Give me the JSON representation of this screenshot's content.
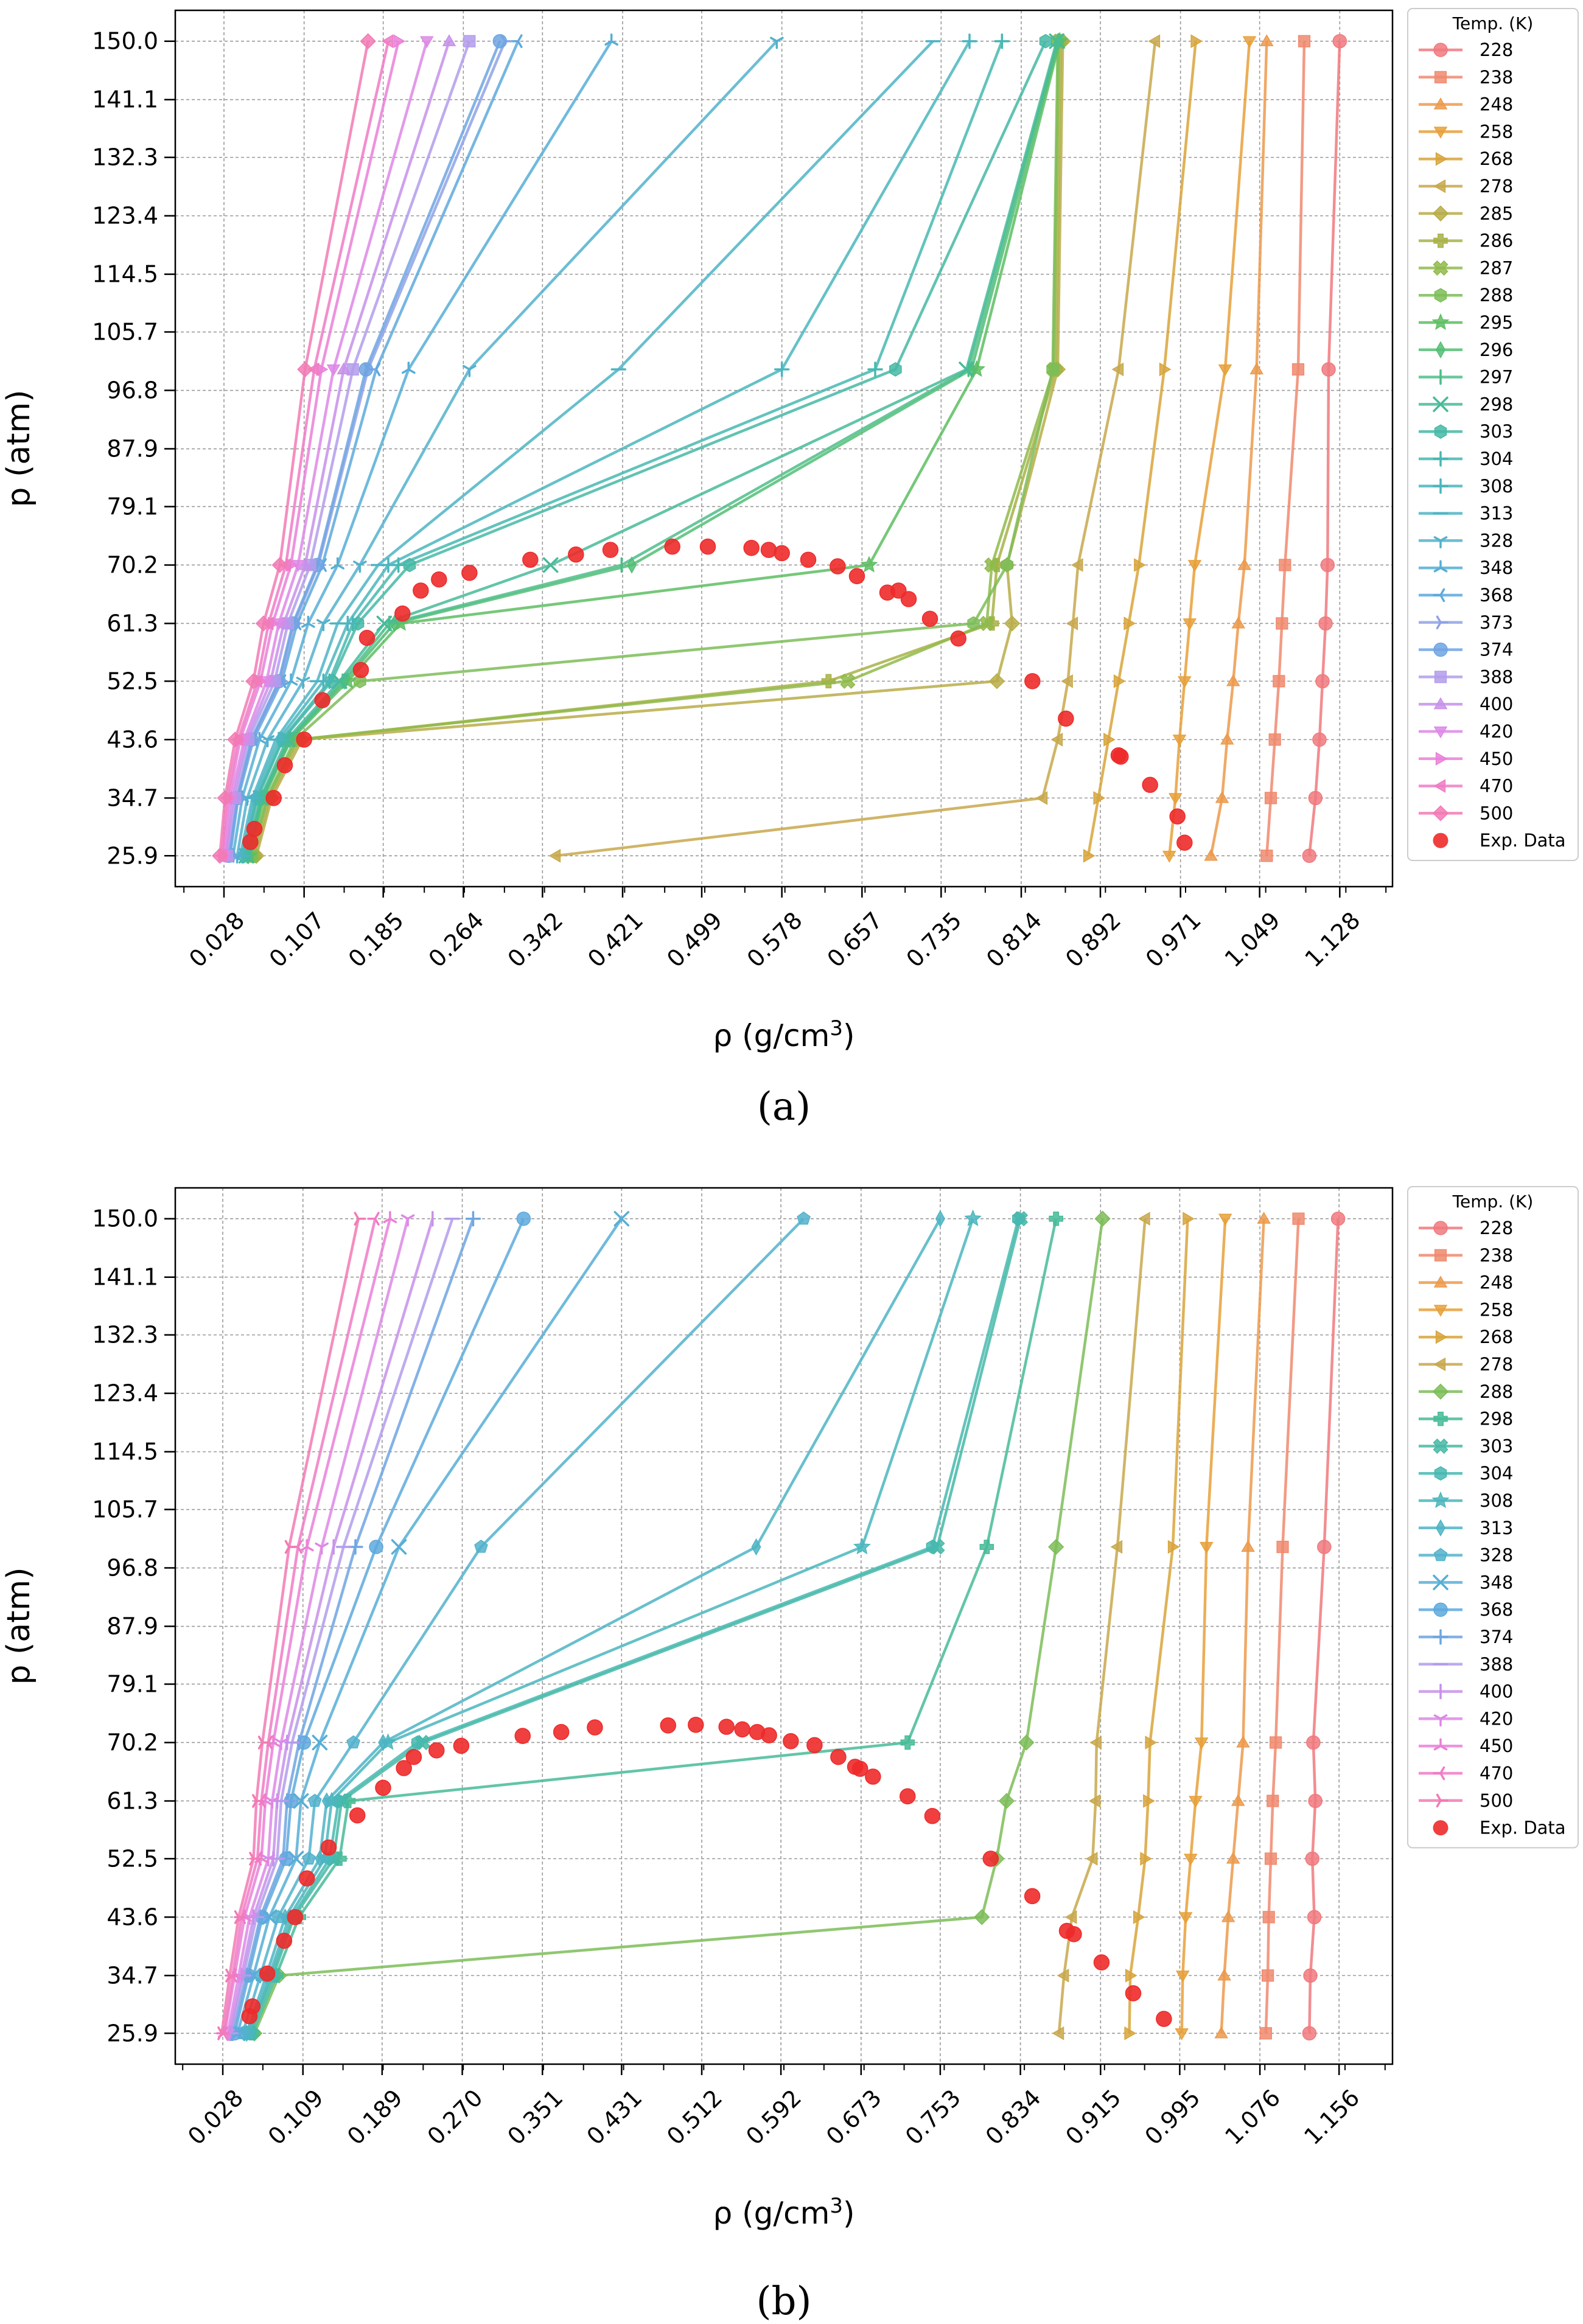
{
  "figure": {
    "panel_a_label": "(a)",
    "panel_b_label": "(b)"
  },
  "colors": {
    "228": "#f0797e",
    "238": "#f08a6e",
    "248": "#ec9a4c",
    "258": "#e8a039",
    "268": "#d8a43b",
    "278": "#c8a84c",
    "285": "#b8ad48",
    "286": "#a8b246",
    "287": "#8fba4a",
    "288": "#7dbd58",
    "295": "#5dbe62",
    "296": "#52be74",
    "297": "#4dbd89",
    "298": "#47bb98",
    "303": "#45b9a5",
    "304": "#46b8b0",
    "308": "#4ab6bd",
    "313": "#4db4c4",
    "328": "#52b1cc",
    "348": "#56aed6",
    "368": "#5ea9dd",
    "373": "#8fa2e6",
    "374": "#6fa5e2",
    "388": "#b39ceb",
    "400": "#c790ea",
    "420": "#dd88e6",
    "450": "#ea80d8",
    "470": "#f07bc6",
    "500": "#f27ab4",
    "exp": "#ee2a2a"
  },
  "chart_data": [
    {
      "type": "line",
      "panel": "a",
      "xlabel": "ρ (g/cm",
      "xlabel_sup": "3",
      "xlabel_end": ")",
      "ylabel": "p (atm)",
      "xlim": [
        -0.02,
        1.18
      ],
      "ylim": [
        21.2,
        154.7
      ],
      "xticks": [
        0.028,
        0.107,
        0.185,
        0.264,
        0.342,
        0.421,
        0.499,
        0.578,
        0.657,
        0.735,
        0.814,
        0.892,
        0.971,
        1.049,
        1.128
      ],
      "xtick_labels": [
        "0.028",
        "0.107",
        "0.185",
        "0.264",
        "0.342",
        "0.421",
        "0.499",
        "0.578",
        "0.657",
        "0.735",
        "0.814",
        "0.892",
        "0.971",
        "1.049",
        "1.128"
      ],
      "yticks": [
        25.9,
        34.7,
        43.6,
        52.5,
        61.3,
        70.2,
        79.1,
        87.9,
        96.8,
        105.7,
        114.5,
        123.4,
        132.3,
        141.1,
        150.0
      ],
      "ytick_labels": [
        "25.9",
        "34.7",
        "43.6",
        "52.5",
        "61.3",
        "70.2",
        "79.1",
        "87.9",
        "96.8",
        "105.7",
        "114.5",
        "123.4",
        "132.3",
        "141.1",
        "150.0"
      ],
      "grid": true,
      "legend": {
        "title": "Temp. (K)",
        "placement": "outside-right-top",
        "exp_label": "Exp. Data"
      },
      "pressures": [
        25.9,
        34.7,
        43.6,
        52.5,
        61.3,
        70.2,
        100.0,
        150.0
      ],
      "series": [
        {
          "name": "228",
          "marker": "o",
          "x": [
            1.098,
            1.104,
            1.108,
            1.111,
            1.114,
            1.116,
            1.117,
            1.128
          ]
        },
        {
          "name": "238",
          "marker": "s",
          "x": [
            1.056,
            1.06,
            1.064,
            1.068,
            1.071,
            1.074,
            1.087,
            1.093
          ]
        },
        {
          "name": "248",
          "marker": "^",
          "x": [
            1.001,
            1.012,
            1.017,
            1.023,
            1.028,
            1.034,
            1.046,
            1.056
          ]
        },
        {
          "name": "258",
          "marker": "v",
          "x": [
            0.96,
            0.966,
            0.97,
            0.975,
            0.98,
            0.985,
            1.015,
            1.039
          ]
        },
        {
          "name": "268",
          "marker": ">",
          "x": [
            0.88,
            0.89,
            0.9,
            0.91,
            0.92,
            0.93,
            0.955,
            0.986
          ]
        },
        {
          "name": "278",
          "marker": "<",
          "x": [
            0.355,
            0.835,
            0.85,
            0.86,
            0.865,
            0.87,
            0.91,
            0.946
          ]
        },
        {
          "name": "285",
          "marker": "D",
          "x": [
            0.06,
            0.075,
            0.105,
            0.79,
            0.805,
            0.8,
            0.85,
            0.855
          ]
        },
        {
          "name": "286",
          "marker": "P",
          "x": [
            0.058,
            0.073,
            0.102,
            0.624,
            0.785,
            0.79,
            0.848,
            0.853
          ]
        },
        {
          "name": "287",
          "marker": "X",
          "x": [
            0.056,
            0.071,
            0.1,
            0.643,
            0.78,
            0.785,
            0.846,
            0.851
          ]
        },
        {
          "name": "288",
          "marker": "h",
          "x": [
            0.055,
            0.07,
            0.098,
            0.162,
            0.767,
            0.8,
            0.845,
            0.85
          ]
        },
        {
          "name": "295",
          "marker": "*",
          "x": [
            0.053,
            0.067,
            0.094,
            0.15,
            0.202,
            0.664,
            0.77,
            0.852
          ]
        },
        {
          "name": "296",
          "marker": "d",
          "x": [
            0.052,
            0.066,
            0.093,
            0.147,
            0.196,
            0.43,
            0.765,
            0.851
          ]
        },
        {
          "name": "297",
          "marker": "|",
          "x": [
            0.051,
            0.065,
            0.092,
            0.145,
            0.191,
            0.42,
            0.762,
            0.85
          ]
        },
        {
          "name": "298",
          "marker": "x",
          "x": [
            0.05,
            0.064,
            0.09,
            0.142,
            0.186,
            0.35,
            0.76,
            0.849
          ]
        },
        {
          "name": "303",
          "marker": "h",
          "x": [
            0.048,
            0.061,
            0.086,
            0.134,
            0.16,
            0.211,
            0.69,
            0.838
          ]
        },
        {
          "name": "304",
          "marker": "+",
          "x": [
            0.047,
            0.06,
            0.085,
            0.132,
            0.155,
            0.2,
            0.67,
            0.795
          ]
        },
        {
          "name": "308",
          "marker": "+",
          "x": [
            0.046,
            0.058,
            0.082,
            0.126,
            0.15,
            0.19,
            0.578,
            0.763
          ]
        },
        {
          "name": "313",
          "marker": "_",
          "x": [
            0.044,
            0.056,
            0.079,
            0.12,
            0.14,
            0.18,
            0.417,
            0.727
          ]
        },
        {
          "name": "328",
          "marker": "1",
          "x": [
            0.041,
            0.051,
            0.071,
            0.106,
            0.126,
            0.162,
            0.27,
            0.573
          ]
        },
        {
          "name": "348",
          "marker": "2",
          "x": [
            0.037,
            0.046,
            0.063,
            0.094,
            0.111,
            0.14,
            0.21,
            0.41
          ]
        },
        {
          "name": "368",
          "marker": "3",
          "x": [
            0.034,
            0.042,
            0.057,
            0.085,
            0.1,
            0.125,
            0.178,
            0.318
          ]
        },
        {
          "name": "373",
          "marker": "4",
          "x": [
            0.033,
            0.041,
            0.056,
            0.083,
            0.097,
            0.121,
            0.17,
            0.305
          ]
        },
        {
          "name": "374",
          "marker": "8",
          "x": [
            0.033,
            0.041,
            0.055,
            0.082,
            0.096,
            0.12,
            0.168,
            0.3
          ]
        },
        {
          "name": "388",
          "marker": "s",
          "x": [
            0.031,
            0.039,
            0.052,
            0.078,
            0.091,
            0.113,
            0.155,
            0.27
          ]
        },
        {
          "name": "400",
          "marker": "^",
          "x": [
            0.03,
            0.037,
            0.05,
            0.074,
            0.087,
            0.108,
            0.146,
            0.25
          ]
        },
        {
          "name": "420",
          "marker": "v",
          "x": [
            0.029,
            0.035,
            0.048,
            0.07,
            0.082,
            0.101,
            0.136,
            0.228
          ]
        },
        {
          "name": "450",
          "marker": ">",
          "x": [
            0.027,
            0.033,
            0.044,
            0.064,
            0.076,
            0.094,
            0.124,
            0.2
          ]
        },
        {
          "name": "470",
          "marker": "<",
          "x": [
            0.026,
            0.031,
            0.042,
            0.061,
            0.072,
            0.089,
            0.117,
            0.19
          ]
        },
        {
          "name": "500",
          "marker": "D",
          "x": [
            0.024,
            0.029,
            0.039,
            0.057,
            0.067,
            0.083,
            0.108,
            0.17
          ]
        }
      ],
      "exp_data": {
        "x": [
          0.054,
          0.058,
          0.077,
          0.088,
          0.107,
          0.125,
          0.163,
          0.169,
          0.204,
          0.222,
          0.24,
          0.27,
          0.33,
          0.375,
          0.409,
          0.47,
          0.505,
          0.548,
          0.565,
          0.578,
          0.604,
          0.633,
          0.652,
          0.682,
          0.693,
          0.703,
          0.724,
          0.752,
          0.825,
          0.858,
          0.91,
          0.912,
          0.941,
          0.968,
          0.975
        ],
        "y": [
          28.0,
          30.0,
          34.7,
          39.7,
          43.6,
          49.6,
          54.2,
          59.1,
          62.8,
          66.3,
          68.0,
          69.0,
          71.0,
          71.8,
          72.5,
          73.0,
          73.0,
          72.8,
          72.5,
          72.0,
          71.0,
          70.0,
          68.5,
          66.0,
          66.3,
          65.0,
          62.0,
          59.0,
          52.5,
          46.8,
          41.2,
          41.0,
          36.7,
          31.9,
          27.9
        ]
      }
    },
    {
      "type": "line",
      "panel": "b",
      "xlabel": "ρ (g/cm",
      "xlabel_sup": "3",
      "xlabel_end": ")",
      "ylabel": "p (atm)",
      "xlim": [
        -0.02,
        1.21
      ],
      "ylim": [
        21.2,
        154.7
      ],
      "xticks": [
        0.028,
        0.109,
        0.189,
        0.27,
        0.351,
        0.431,
        0.512,
        0.592,
        0.673,
        0.753,
        0.834,
        0.915,
        0.995,
        1.076,
        1.156
      ],
      "xtick_labels": [
        "0.028",
        "0.109",
        "0.189",
        "0.270",
        "0.351",
        "0.431",
        "0.512",
        "0.592",
        "0.673",
        "0.753",
        "0.834",
        "0.915",
        "0.995",
        "1.076",
        "1.156"
      ],
      "yticks": [
        25.9,
        34.7,
        43.6,
        52.5,
        61.3,
        70.2,
        79.1,
        87.9,
        96.8,
        105.7,
        114.5,
        123.4,
        132.3,
        141.1,
        150.0
      ],
      "ytick_labels": [
        "25.9",
        "34.7",
        "43.6",
        "52.5",
        "61.3",
        "70.2",
        "79.1",
        "87.9",
        "96.8",
        "105.7",
        "114.5",
        "123.4",
        "132.3",
        "141.1",
        "150.0"
      ],
      "grid": true,
      "legend": {
        "title": "Temp. (K)",
        "placement": "outside-right-top",
        "exp_label": "Exp. Data"
      },
      "pressures": [
        25.9,
        34.7,
        43.6,
        52.5,
        61.3,
        70.2,
        100.0,
        150.0
      ],
      "series": [
        {
          "name": "228",
          "marker": "o",
          "x": [
            1.126,
            1.127,
            1.131,
            1.129,
            1.132,
            1.13,
            1.141,
            1.155
          ]
        },
        {
          "name": "238",
          "marker": "s",
          "x": [
            1.082,
            1.084,
            1.085,
            1.087,
            1.089,
            1.092,
            1.099,
            1.115
          ]
        },
        {
          "name": "248",
          "marker": "^",
          "x": [
            1.037,
            1.04,
            1.044,
            1.049,
            1.054,
            1.059,
            1.064,
            1.08
          ]
        },
        {
          "name": "258",
          "marker": "v",
          "x": [
            0.997,
            0.998,
            1.001,
            1.006,
            1.011,
            1.017,
            1.022,
            1.041
          ]
        },
        {
          "name": "268",
          "marker": ">",
          "x": [
            0.944,
            0.945,
            0.953,
            0.96,
            0.963,
            0.965,
            0.988,
            1.003
          ]
        },
        {
          "name": "278",
          "marker": "<",
          "x": [
            0.873,
            0.878,
            0.886,
            0.907,
            0.91,
            0.911,
            0.932,
            0.96
          ]
        },
        {
          "name": "288",
          "marker": "D",
          "x": [
            0.06,
            0.085,
            0.795,
            0.81,
            0.82,
            0.84,
            0.87,
            0.917
          ]
        },
        {
          "name": "298",
          "marker": "P",
          "x": [
            0.058,
            0.082,
            0.105,
            0.146,
            0.155,
            0.72,
            0.8,
            0.87
          ]
        },
        {
          "name": "303",
          "marker": "X",
          "x": [
            0.056,
            0.079,
            0.1,
            0.14,
            0.148,
            0.23,
            0.75,
            0.834
          ]
        },
        {
          "name": "304",
          "marker": "h",
          "x": [
            0.055,
            0.077,
            0.098,
            0.136,
            0.145,
            0.225,
            0.745,
            0.832
          ]
        },
        {
          "name": "308",
          "marker": "*",
          "x": [
            0.054,
            0.075,
            0.095,
            0.131,
            0.138,
            0.195,
            0.674,
            0.786
          ]
        },
        {
          "name": "313",
          "marker": "d",
          "x": [
            0.052,
            0.072,
            0.091,
            0.126,
            0.133,
            0.19,
            0.567,
            0.753
          ]
        },
        {
          "name": "328",
          "marker": "p",
          "x": [
            0.048,
            0.066,
            0.084,
            0.115,
            0.121,
            0.16,
            0.289,
            0.615
          ]
        },
        {
          "name": "348",
          "marker": "x",
          "x": [
            0.043,
            0.059,
            0.075,
            0.102,
            0.107,
            0.126,
            0.206,
            0.431
          ]
        },
        {
          "name": "368",
          "marker": "o",
          "x": [
            0.04,
            0.054,
            0.068,
            0.092,
            0.097,
            0.11,
            0.183,
            0.332
          ]
        },
        {
          "name": "374",
          "marker": "+",
          "x": [
            0.038,
            0.052,
            0.066,
            0.089,
            0.093,
            0.105,
            0.162,
            0.281
          ]
        },
        {
          "name": "388",
          "marker": "_",
          "x": [
            0.036,
            0.049,
            0.062,
            0.083,
            0.087,
            0.098,
            0.15,
            0.26
          ]
        },
        {
          "name": "400",
          "marker": "|",
          "x": [
            0.035,
            0.047,
            0.059,
            0.079,
            0.083,
            0.093,
            0.14,
            0.24
          ]
        },
        {
          "name": "420",
          "marker": "1",
          "x": [
            0.033,
            0.044,
            0.055,
            0.074,
            0.078,
            0.087,
            0.128,
            0.215
          ]
        },
        {
          "name": "450",
          "marker": "2",
          "x": [
            0.03,
            0.04,
            0.05,
            0.067,
            0.071,
            0.079,
            0.113,
            0.197
          ]
        },
        {
          "name": "470",
          "marker": "3",
          "x": [
            0.029,
            0.038,
            0.047,
            0.063,
            0.067,
            0.074,
            0.104,
            0.182
          ]
        },
        {
          "name": "500",
          "marker": "4",
          "x": [
            0.027,
            0.035,
            0.044,
            0.059,
            0.062,
            0.068,
            0.095,
            0.165
          ]
        }
      ],
      "exp_data": {
        "x": [
          0.055,
          0.058,
          0.073,
          0.09,
          0.101,
          0.113,
          0.135,
          0.164,
          0.19,
          0.211,
          0.221,
          0.244,
          0.269,
          0.331,
          0.37,
          0.404,
          0.478,
          0.506,
          0.537,
          0.553,
          0.568,
          0.58,
          0.602,
          0.626,
          0.65,
          0.667,
          0.672,
          0.685,
          0.72,
          0.745,
          0.804,
          0.846,
          0.881,
          0.888,
          0.916,
          0.948,
          0.979
        ],
        "y": [
          28.5,
          30.0,
          35.0,
          40.0,
          43.6,
          49.5,
          54.2,
          59.1,
          63.3,
          66.3,
          68.0,
          69.0,
          69.7,
          71.2,
          71.8,
          72.5,
          72.8,
          72.9,
          72.6,
          72.2,
          71.8,
          71.3,
          70.4,
          69.8,
          68.0,
          66.5,
          66.2,
          65.0,
          62.0,
          59.0,
          52.5,
          46.8,
          41.5,
          41.0,
          36.7,
          32.0,
          28.1
        ]
      }
    }
  ]
}
